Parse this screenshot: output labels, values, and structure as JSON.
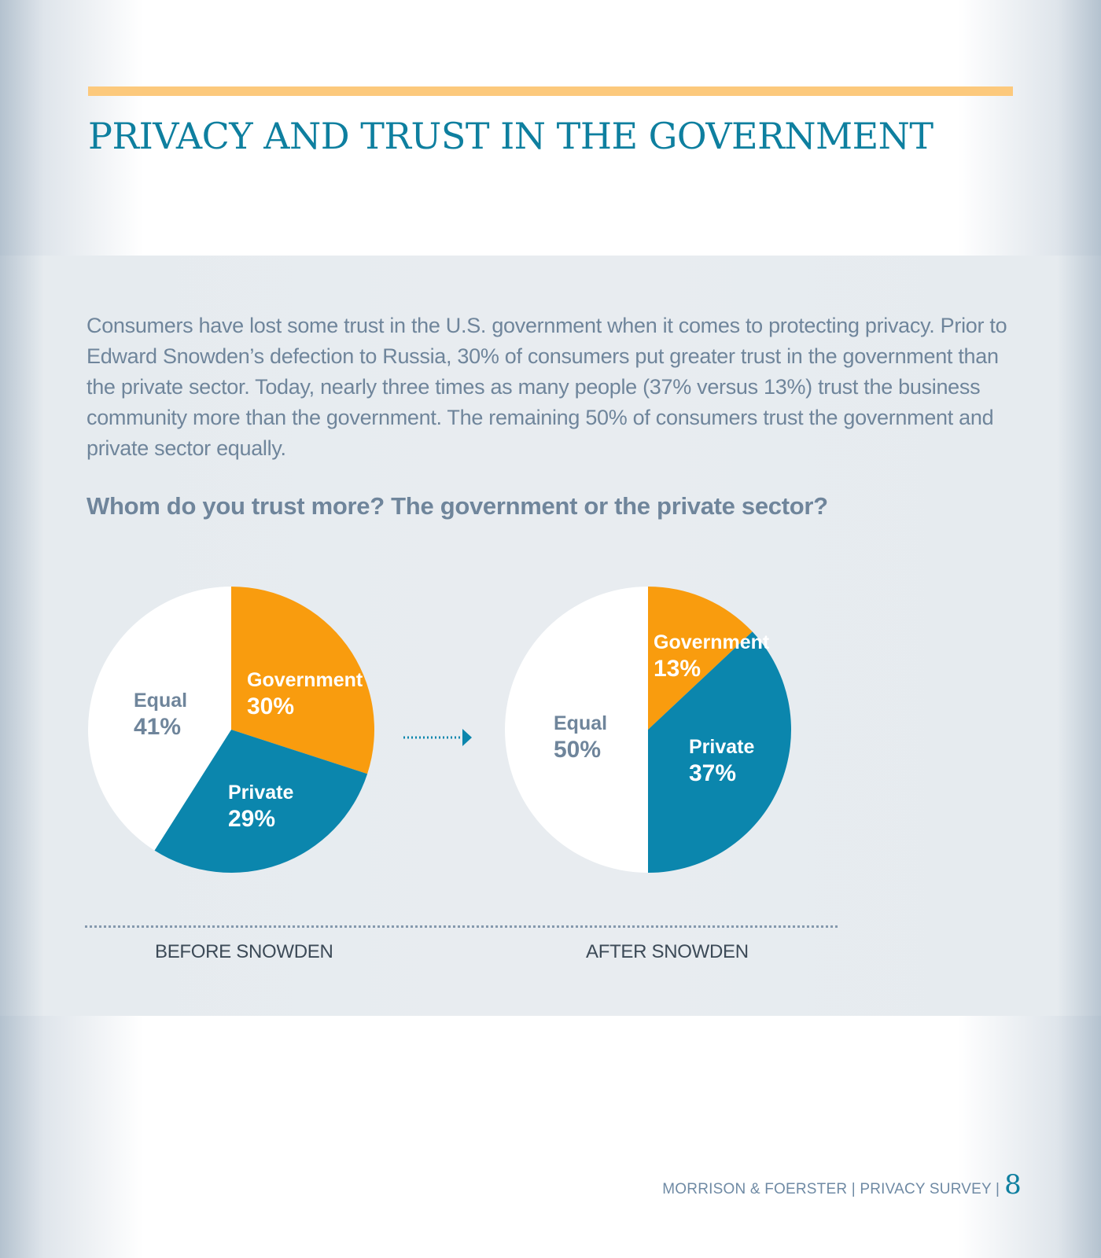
{
  "header": {
    "title": "PRIVACY AND TRUST IN THE GOVERNMENT"
  },
  "intro": "Consumers have lost some trust in the U.S. government when it comes to protecting privacy. Prior to Edward Snowden’s defection to Russia, 30% of consumers put greater trust in the government than the private sector. Today, nearly three times as many people (37% versus 13%) trust the business community more than the government. The remaining 50% of consumers trust the government and private sector equally.",
  "question": "Whom do you trust more? The government or the private sector?",
  "colors": {
    "government": "#f99c0e",
    "private": "#0b86ad",
    "equal": "#ffffff",
    "label_light": "#ffffff",
    "label_dark": "#6f859b"
  },
  "chart_data": [
    {
      "type": "pie",
      "title": "BEFORE SNOWDEN",
      "slices": [
        {
          "label": "Government",
          "value": 30
        },
        {
          "label": "Private",
          "value": 29
        },
        {
          "label": "Equal",
          "value": 41
        }
      ]
    },
    {
      "type": "pie",
      "title": "AFTER SNOWDEN",
      "slices": [
        {
          "label": "Government",
          "value": 13
        },
        {
          "label": "Private",
          "value": 37
        },
        {
          "label": "Equal",
          "value": 50
        }
      ]
    }
  ],
  "footer": {
    "text": "MORRISON & FOERSTER | PRIVACY SURVEY |",
    "page_number": "8"
  }
}
